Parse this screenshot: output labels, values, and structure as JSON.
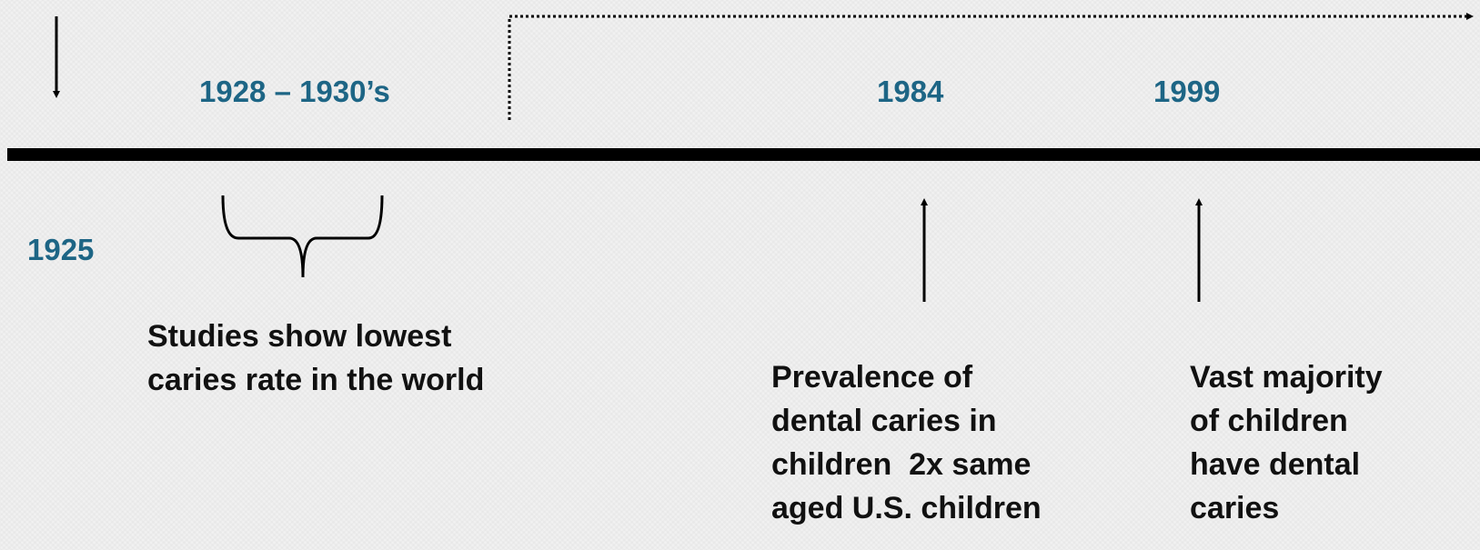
{
  "events": [
    {
      "year": "1925"
    },
    {
      "year": "1928 – 1930’s",
      "text": [
        "Studies show lowest",
        "caries rate in the world"
      ]
    },
    {
      "year": "1984",
      "text": [
        "Prevalence of",
        "dental caries in",
        "children  2x same",
        "aged U.S. children"
      ]
    },
    {
      "year": "1999",
      "text": [
        "Vast majority",
        "of children",
        "have dental",
        "caries"
      ]
    }
  ]
}
